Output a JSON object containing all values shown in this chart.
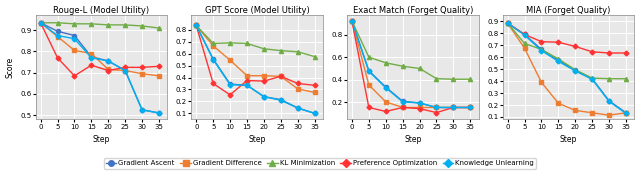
{
  "steps": [
    0,
    5,
    10,
    15,
    20,
    25,
    30,
    35
  ],
  "titles": [
    "Rouge-L (Model Utility)",
    "GPT Score (Model Utility)",
    "Exact Match (Forget Quality)",
    "MIA (Forget Quality)"
  ],
  "ylabel": "Score",
  "xlabel": "Step",
  "figsize": [
    6.4,
    1.72
  ],
  "dpi": 100,
  "series_order": [
    "Gradient Ascent",
    "Gradient Difference",
    "KL Minimization",
    "Preference Optimization",
    "Knowledge Unlearning"
  ],
  "series": {
    "Gradient Ascent": {
      "color": "#4472C4",
      "marker": "o",
      "markersize": 3,
      "linewidth": 1.0,
      "rouge_l": [
        0.935,
        0.895,
        0.875,
        0.775,
        0.755,
        0.71,
        0.525,
        0.51
      ],
      "gpt_score": [
        0.835,
        0.555,
        0.345,
        0.335,
        0.24,
        0.215,
        0.145,
        0.1
      ],
      "exact_match": [
        0.92,
        0.48,
        0.335,
        0.21,
        0.195,
        0.155,
        0.155,
        0.155
      ],
      "mia": [
        0.885,
        0.79,
        0.665,
        0.575,
        0.49,
        0.42,
        0.235,
        0.135
      ]
    },
    "Gradient Difference": {
      "color": "#ED7D31",
      "marker": "s",
      "markersize": 3,
      "linewidth": 1.0,
      "rouge_l": [
        0.935,
        0.87,
        0.805,
        0.79,
        0.715,
        0.71,
        0.695,
        0.685
      ],
      "gpt_score": [
        0.835,
        0.665,
        0.545,
        0.415,
        0.415,
        0.41,
        0.305,
        0.275
      ],
      "exact_match": [
        0.92,
        0.355,
        0.205,
        0.155,
        0.155,
        0.155,
        0.155,
        0.155
      ],
      "mia": [
        0.885,
        0.675,
        0.39,
        0.215,
        0.155,
        0.135,
        0.115,
        0.135
      ]
    },
    "KL Minimization": {
      "color": "#70AD47",
      "marker": "^",
      "markersize": 3,
      "linewidth": 1.0,
      "rouge_l": [
        0.935,
        0.935,
        0.93,
        0.93,
        0.925,
        0.925,
        0.92,
        0.91
      ],
      "gpt_score": [
        0.835,
        0.685,
        0.69,
        0.685,
        0.64,
        0.625,
        0.615,
        0.575
      ],
      "exact_match": [
        0.92,
        0.6,
        0.55,
        0.52,
        0.5,
        0.41,
        0.405,
        0.405
      ],
      "mia": [
        0.885,
        0.715,
        0.665,
        0.585,
        0.495,
        0.425,
        0.42,
        0.42
      ]
    },
    "Preference Optimization": {
      "color": "#FF3333",
      "marker": "D",
      "markersize": 2.5,
      "linewidth": 1.0,
      "rouge_l": [
        0.935,
        0.77,
        0.685,
        0.735,
        0.71,
        0.725,
        0.725,
        0.73
      ],
      "gpt_score": [
        0.835,
        0.35,
        0.255,
        0.375,
        0.37,
        0.41,
        0.35,
        0.335
      ],
      "exact_match": [
        0.92,
        0.155,
        0.12,
        0.155,
        0.145,
        0.11,
        0.155,
        0.155
      ],
      "mia": [
        0.885,
        0.79,
        0.73,
        0.725,
        0.69,
        0.645,
        0.635,
        0.635
      ]
    },
    "Knowledge Unlearning": {
      "color": "#00B0F0",
      "marker": "D",
      "markersize": 2.5,
      "linewidth": 1.0,
      "rouge_l": [
        0.935,
        0.875,
        0.86,
        0.77,
        0.755,
        0.71,
        0.525,
        0.51
      ],
      "gpt_score": [
        0.835,
        0.55,
        0.34,
        0.335,
        0.24,
        0.21,
        0.145,
        0.1
      ],
      "exact_match": [
        0.92,
        0.475,
        0.33,
        0.205,
        0.195,
        0.155,
        0.155,
        0.155
      ],
      "mia": [
        0.885,
        0.785,
        0.655,
        0.565,
        0.485,
        0.415,
        0.23,
        0.13
      ]
    }
  },
  "ylims": {
    "rouge_l": [
      0.48,
      0.97
    ],
    "gpt_score": [
      0.05,
      0.92
    ],
    "exact_match": [
      0.05,
      0.97
    ],
    "mia": [
      0.08,
      0.95
    ]
  },
  "yticks": {
    "rouge_l": [
      0.5,
      0.6,
      0.7,
      0.8,
      0.9
    ],
    "gpt_score": [
      0.1,
      0.2,
      0.3,
      0.4,
      0.5,
      0.6,
      0.7,
      0.8
    ],
    "exact_match": [
      0.2,
      0.4,
      0.6,
      0.8
    ],
    "mia": [
      0.1,
      0.2,
      0.3,
      0.4,
      0.5,
      0.6,
      0.7,
      0.8,
      0.9
    ]
  },
  "data_keys": [
    "rouge_l",
    "gpt_score",
    "exact_match",
    "mia"
  ],
  "bg_color": "#e8e8e8",
  "grid_color": "white",
  "title_fontsize": 6,
  "label_fontsize": 5.5,
  "tick_fontsize": 5,
  "legend_fontsize": 5
}
